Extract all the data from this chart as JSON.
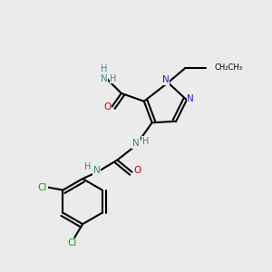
{
  "bg_color": "#ebebeb",
  "atom_colors": {
    "C": "#000000",
    "N": "#2020cc",
    "O": "#cc0000",
    "Cl": "#00aa00",
    "H": "#448888"
  },
  "bond_color": "#000000",
  "bond_width": 1.5
}
